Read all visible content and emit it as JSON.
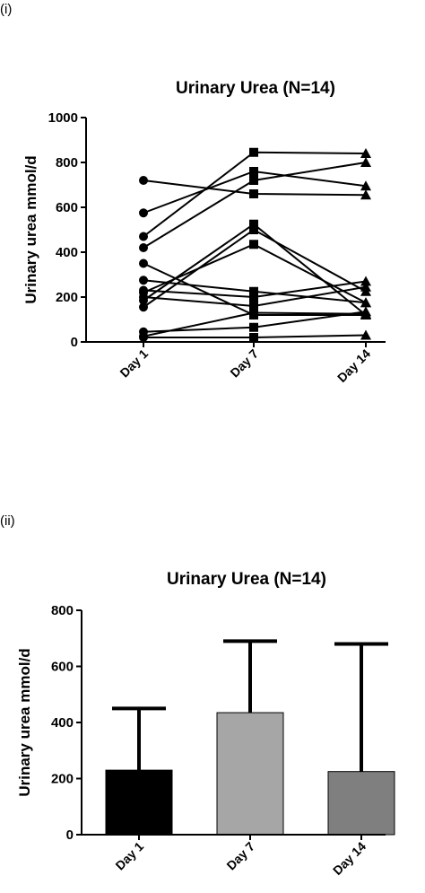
{
  "panels": {
    "top_label": "(i)",
    "bottom_label": "(ii)"
  },
  "chart_data": [
    {
      "type": "line",
      "title": "Urinary Urea (N=14)",
      "ylabel": "Urinary urea mmol/d",
      "xlabel": "",
      "categories": [
        "Day 1",
        "Day 7",
        "Day 14"
      ],
      "ylim": [
        0,
        1000
      ],
      "yticks": [
        0,
        200,
        400,
        600,
        800,
        1000
      ],
      "markers": [
        "circle",
        "square",
        "triangle"
      ],
      "color": "#000000",
      "series": [
        {
          "values": [
            720,
            660,
            655
          ]
        },
        {
          "values": [
            575,
            760,
            695
          ]
        },
        {
          "values": [
            470,
            845,
            840
          ]
        },
        {
          "values": [
            420,
            720,
            800
          ]
        },
        {
          "values": [
            350,
            120,
            120
          ]
        },
        {
          "values": [
            275,
            225,
            175
          ]
        },
        {
          "values": [
            230,
            200,
            270
          ]
        },
        {
          "values": [
            220,
            435,
            175
          ]
        },
        {
          "values": [
            200,
            160,
            245
          ]
        },
        {
          "values": [
            185,
            525,
            120
          ]
        },
        {
          "values": [
            155,
            500,
            225
          ]
        },
        {
          "values": [
            45,
            65,
            135
          ]
        },
        {
          "values": [
            25,
            130,
            125
          ]
        },
        {
          "values": [
            20,
            20,
            30
          ]
        }
      ]
    },
    {
      "type": "bar",
      "title": "Urinary Urea (N=14)",
      "ylabel": "Urinary urea mmol/d",
      "xlabel": "",
      "categories": [
        "Day 1",
        "Day 7",
        "Day 14"
      ],
      "values": [
        230,
        435,
        225
      ],
      "error_upper": [
        450,
        690,
        680
      ],
      "ylim": [
        0,
        800
      ],
      "yticks": [
        0,
        200,
        400,
        600,
        800
      ],
      "colors": [
        "#000000",
        "#a6a6a6",
        "#7f7f7f"
      ]
    }
  ]
}
